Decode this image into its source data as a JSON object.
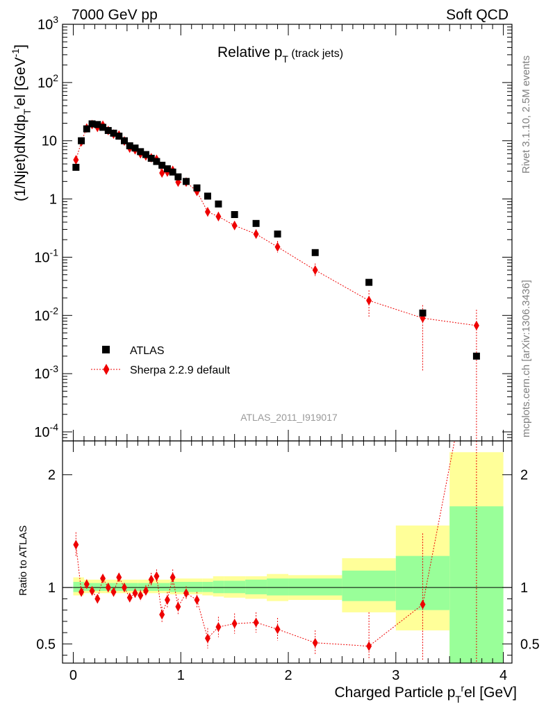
{
  "header": {
    "left": "7000 GeV pp",
    "right": "Soft QCD"
  },
  "side_labels": {
    "rivet": "Rivet 3.1.10,  2.5M events",
    "mcplots": "mcplots.cern.ch [arXiv:1306.3436]"
  },
  "main_plot": {
    "title_main": "Relative p",
    "title_sub": "T",
    "title_suffix": " (track jets)",
    "ylabel": "(1/Njet)dN/dp",
    "ylabel_sub": "T",
    "ylabel_sup": "r",
    "ylabel_rest": "el [GeV",
    "ylabel_unit_sup": "-1",
    "ylabel_close": "]",
    "analysis_id": "ATLAS_2011_I919017"
  },
  "ratio_plot": {
    "ylabel": "Ratio to ATLAS"
  },
  "xaxis": {
    "label_pre": "Charged Particle p",
    "label_sub": "T",
    "label_sup": "r",
    "label_post": "el [GeV]",
    "ticks": [
      "0",
      "1",
      "2",
      "3",
      "4"
    ]
  },
  "legend": {
    "atlas": "ATLAS",
    "sherpa": "Sherpa 2.2.9 default"
  },
  "colors": {
    "data": "#000000",
    "mc": "#ee0000",
    "band_inner": "#99ff99",
    "band_outer": "#ffff99"
  },
  "chart_data": {
    "type": "scatter",
    "x_range": [
      -0.1,
      4.08
    ],
    "y_scale": "log",
    "y_range": [
      7e-05,
      1000
    ],
    "ratio_range": [
      0.33,
      2.3
    ],
    "y_ticks": [
      {
        "v": 0.0001,
        "base": "10",
        "exp": "-4"
      },
      {
        "v": 0.001,
        "base": "10",
        "exp": "-3"
      },
      {
        "v": 0.01,
        "base": "10",
        "exp": "-2"
      },
      {
        "v": 0.1,
        "base": "10",
        "exp": "-1"
      },
      {
        "v": 1,
        "base": "1",
        "exp": ""
      },
      {
        "v": 10,
        "base": "10",
        "exp": ""
      },
      {
        "v": 100,
        "base": "10",
        "exp": "2"
      },
      {
        "v": 1000,
        "base": "10",
        "exp": "3"
      }
    ],
    "ratio_ticks": [
      {
        "v": 0.5,
        "label": "0.5"
      },
      {
        "v": 1,
        "label": "1"
      },
      {
        "v": 2,
        "label": "2"
      }
    ],
    "atlas": [
      {
        "x": 0.025,
        "y": 3.5
      },
      {
        "x": 0.075,
        "y": 10
      },
      {
        "x": 0.125,
        "y": 16
      },
      {
        "x": 0.175,
        "y": 19.5
      },
      {
        "x": 0.225,
        "y": 19
      },
      {
        "x": 0.275,
        "y": 17
      },
      {
        "x": 0.325,
        "y": 15
      },
      {
        "x": 0.375,
        "y": 13.5
      },
      {
        "x": 0.425,
        "y": 12
      },
      {
        "x": 0.475,
        "y": 10
      },
      {
        "x": 0.525,
        "y": 8.2
      },
      {
        "x": 0.575,
        "y": 7.5
      },
      {
        "x": 0.625,
        "y": 6.5
      },
      {
        "x": 0.675,
        "y": 5.8
      },
      {
        "x": 0.725,
        "y": 5
      },
      {
        "x": 0.775,
        "y": 4.4
      },
      {
        "x": 0.825,
        "y": 3.8
      },
      {
        "x": 0.875,
        "y": 3.3
      },
      {
        "x": 0.925,
        "y": 2.9
      },
      {
        "x": 0.975,
        "y": 2.4
      },
      {
        "x": 1.05,
        "y": 2.0
      },
      {
        "x": 1.15,
        "y": 1.55
      },
      {
        "x": 1.25,
        "y": 1.12
      },
      {
        "x": 1.35,
        "y": 0.82
      },
      {
        "x": 1.5,
        "y": 0.54
      },
      {
        "x": 1.7,
        "y": 0.38
      },
      {
        "x": 1.9,
        "y": 0.25
      },
      {
        "x": 2.25,
        "y": 0.12
      },
      {
        "x": 2.75,
        "y": 0.037
      },
      {
        "x": 3.25,
        "y": 0.011
      },
      {
        "x": 3.75,
        "y": 0.002
      }
    ],
    "sherpa": [
      {
        "x": 0.025,
        "y": 4.7,
        "lo": 4.2,
        "hi": 5.3,
        "r": 1.38,
        "rlo": 1.27,
        "rhi": 1.49
      },
      {
        "x": 0.075,
        "y": 9.6,
        "lo": 9.0,
        "hi": 10.3,
        "r": 0.96,
        "rlo": 0.92,
        "rhi": 1.0
      },
      {
        "x": 0.125,
        "y": 16.5,
        "lo": 15.7,
        "hi": 17.4,
        "r": 1.03,
        "rlo": 0.99,
        "rhi": 1.07
      },
      {
        "x": 0.175,
        "y": 19.0,
        "lo": 18.2,
        "hi": 19.9,
        "r": 0.97,
        "rlo": 0.93,
        "rhi": 1.01
      },
      {
        "x": 0.225,
        "y": 17.0,
        "lo": 16.1,
        "hi": 17.9,
        "r": 0.9,
        "rlo": 0.86,
        "rhi": 0.94
      },
      {
        "x": 0.275,
        "y": 18.5,
        "lo": 17.6,
        "hi": 19.4,
        "r": 1.08,
        "rlo": 1.04,
        "rhi": 1.12
      },
      {
        "x": 0.325,
        "y": 15.0,
        "lo": 14.2,
        "hi": 15.8,
        "r": 1.0,
        "rlo": 0.96,
        "rhi": 1.04
      },
      {
        "x": 0.375,
        "y": 13.0,
        "lo": 12.3,
        "hi": 13.7,
        "r": 0.96,
        "rlo": 0.92,
        "rhi": 1.0
      },
      {
        "x": 0.425,
        "y": 12.5,
        "lo": 11.8,
        "hi": 13.2,
        "r": 1.09,
        "rlo": 1.05,
        "rhi": 1.13
      },
      {
        "x": 0.475,
        "y": 9.9,
        "lo": 9.3,
        "hi": 10.5,
        "r": 1.0,
        "rlo": 0.96,
        "rhi": 1.04
      },
      {
        "x": 0.525,
        "y": 7.5,
        "lo": 7.0,
        "hi": 8.0,
        "r": 0.91,
        "rlo": 0.87,
        "rhi": 0.95
      },
      {
        "x": 0.575,
        "y": 7.0,
        "lo": 6.5,
        "hi": 7.5,
        "r": 0.95,
        "rlo": 0.91,
        "rhi": 0.99
      },
      {
        "x": 0.625,
        "y": 6.0,
        "lo": 5.5,
        "hi": 6.5,
        "r": 0.93,
        "rlo": 0.88,
        "rhi": 0.98
      },
      {
        "x": 0.675,
        "y": 5.5,
        "lo": 5.0,
        "hi": 6.0,
        "r": 0.97,
        "rlo": 0.92,
        "rhi": 1.02
      },
      {
        "x": 0.725,
        "y": 5.1,
        "lo": 4.6,
        "hi": 5.6,
        "r": 1.07,
        "rlo": 1.01,
        "rhi": 1.13
      },
      {
        "x": 0.775,
        "y": 4.8,
        "lo": 4.3,
        "hi": 5.3,
        "r": 1.1,
        "rlo": 1.04,
        "rhi": 1.16
      },
      {
        "x": 0.825,
        "y": 2.8,
        "lo": 2.4,
        "hi": 3.2,
        "r": 0.76,
        "rlo": 0.69,
        "rhi": 0.83
      },
      {
        "x": 0.875,
        "y": 2.9,
        "lo": 2.5,
        "hi": 3.3,
        "r": 0.89,
        "rlo": 0.82,
        "rhi": 0.96
      },
      {
        "x": 0.925,
        "y": 3.1,
        "lo": 2.7,
        "hi": 3.5,
        "r": 1.09,
        "rlo": 1.02,
        "rhi": 1.16
      },
      {
        "x": 0.975,
        "y": 1.95,
        "lo": 1.7,
        "hi": 2.2,
        "r": 0.83,
        "rlo": 0.76,
        "rhi": 0.9
      },
      {
        "x": 1.05,
        "y": 1.95,
        "lo": 1.75,
        "hi": 2.15,
        "r": 0.95,
        "rlo": 0.89,
        "rhi": 1.01
      },
      {
        "x": 1.15,
        "y": 1.35,
        "lo": 1.2,
        "hi": 1.5,
        "r": 0.89,
        "rlo": 0.82,
        "rhi": 0.96
      },
      {
        "x": 1.25,
        "y": 0.6,
        "lo": 0.5,
        "hi": 0.72,
        "r": 0.55,
        "rlo": 0.46,
        "rhi": 0.64
      },
      {
        "x": 1.35,
        "y": 0.5,
        "lo": 0.42,
        "hi": 0.6,
        "r": 0.65,
        "rlo": 0.56,
        "rhi": 0.74
      },
      {
        "x": 1.5,
        "y": 0.35,
        "lo": 0.3,
        "hi": 0.41,
        "r": 0.68,
        "rlo": 0.59,
        "rhi": 0.77
      },
      {
        "x": 1.7,
        "y": 0.25,
        "lo": 0.21,
        "hi": 0.3,
        "r": 0.69,
        "rlo": 0.6,
        "rhi": 0.78
      },
      {
        "x": 1.9,
        "y": 0.15,
        "lo": 0.12,
        "hi": 0.19,
        "r": 0.63,
        "rlo": 0.53,
        "rhi": 0.73
      },
      {
        "x": 2.25,
        "y": 0.06,
        "lo": 0.045,
        "hi": 0.078,
        "r": 0.51,
        "rlo": 0.4,
        "rhi": 0.62
      },
      {
        "x": 2.75,
        "y": 0.018,
        "lo": 0.009,
        "hi": 0.027,
        "r": 0.48,
        "rlo": 0.36,
        "rhi": 0.78
      },
      {
        "x": 3.25,
        "y": 0.009,
        "lo": 0.0011,
        "hi": 0.015,
        "r": 0.85,
        "rlo": 0.36,
        "rhi": 1.48
      },
      {
        "x": 3.75,
        "y": 0.0067,
        "lo": 7e-05,
        "hi": 0.0125,
        "r": 3.3,
        "rlo": 0.33,
        "rhi": 3.5
      }
    ],
    "bands": [
      {
        "x0": 0.0,
        "x1": 0.1,
        "in_lo": 0.96,
        "in_hi": 1.05,
        "out_lo": 0.93,
        "out_hi": 1.09
      },
      {
        "x0": 0.1,
        "x1": 0.3,
        "in_lo": 0.97,
        "in_hi": 1.04,
        "out_lo": 0.95,
        "out_hi": 1.07
      },
      {
        "x0": 0.3,
        "x1": 0.6,
        "in_lo": 0.97,
        "in_hi": 1.04,
        "out_lo": 0.95,
        "out_hi": 1.07
      },
      {
        "x0": 0.6,
        "x1": 0.9,
        "in_lo": 0.97,
        "in_hi": 1.04,
        "out_lo": 0.95,
        "out_hi": 1.07
      },
      {
        "x0": 0.9,
        "x1": 1.2,
        "in_lo": 0.96,
        "in_hi": 1.05,
        "out_lo": 0.94,
        "out_hi": 1.08
      },
      {
        "x0": 1.2,
        "x1": 1.3,
        "in_lo": 0.96,
        "in_hi": 1.05,
        "out_lo": 0.93,
        "out_hi": 1.08
      },
      {
        "x0": 1.3,
        "x1": 1.4,
        "in_lo": 0.95,
        "in_hi": 1.06,
        "out_lo": 0.92,
        "out_hi": 1.1
      },
      {
        "x0": 1.4,
        "x1": 1.6,
        "in_lo": 0.95,
        "in_hi": 1.06,
        "out_lo": 0.91,
        "out_hi": 1.1
      },
      {
        "x0": 1.6,
        "x1": 1.8,
        "in_lo": 0.94,
        "in_hi": 1.07,
        "out_lo": 0.9,
        "out_hi": 1.1
      },
      {
        "x0": 1.8,
        "x1": 2.0,
        "in_lo": 0.93,
        "in_hi": 1.08,
        "out_lo": 0.88,
        "out_hi": 1.12
      },
      {
        "x0": 2.0,
        "x1": 2.5,
        "in_lo": 0.93,
        "in_hi": 1.08,
        "out_lo": 0.89,
        "out_hi": 1.11
      },
      {
        "x0": 2.5,
        "x1": 3.0,
        "in_lo": 0.88,
        "in_hi": 1.15,
        "out_lo": 0.78,
        "out_hi": 1.26
      },
      {
        "x0": 3.0,
        "x1": 3.5,
        "in_lo": 0.8,
        "in_hi": 1.28,
        "out_lo": 0.62,
        "out_hi": 1.55
      },
      {
        "x0": 3.5,
        "x1": 4.0,
        "in_lo": 0.33,
        "in_hi": 1.72,
        "out_lo": 0.33,
        "out_hi": 2.2
      }
    ]
  }
}
